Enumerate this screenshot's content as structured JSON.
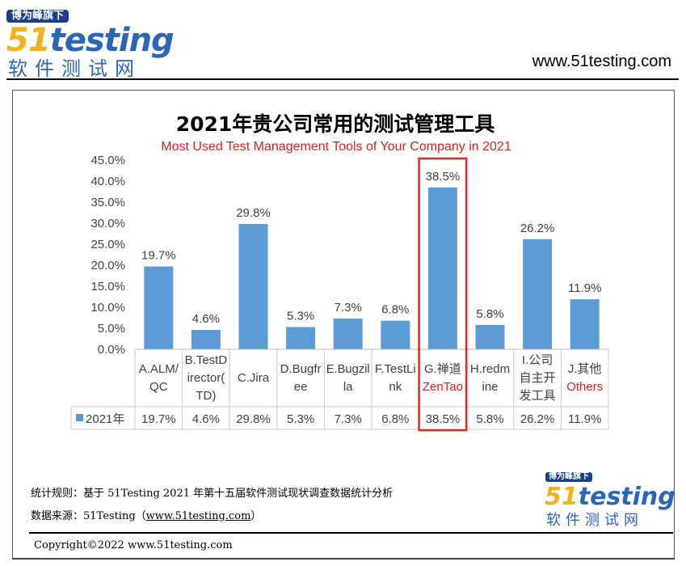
{
  "header": {
    "logo_badge": "博为峰旗下",
    "logo_text": "51testing",
    "logo_num": "51",
    "logo_word": "testing",
    "logo_sub": "软件测试网",
    "site": "www.51testing.com"
  },
  "chart_data": {
    "type": "bar",
    "title": "2021年贵公司常用的测试管理工具",
    "subtitle": "Most Used Test Management Tools of Your Company in 2021",
    "categories": [
      [
        "A.ALM/",
        "QC"
      ],
      [
        "B.TestD",
        "irector(",
        "TD)"
      ],
      [
        "C.Jira"
      ],
      [
        "D.Bugfr",
        "ee"
      ],
      [
        "E.Bugzil",
        "la"
      ],
      [
        "F.TestLi",
        "nk"
      ],
      [
        "G.禅道",
        "ZenTao"
      ],
      [
        "H.redm",
        "ine"
      ],
      [
        "I.公司",
        "自主开",
        "发工具"
      ],
      [
        "J.其他",
        "Others"
      ]
    ],
    "series": [
      {
        "name": "2021年",
        "values": [
          19.7,
          4.6,
          29.8,
          5.3,
          7.3,
          6.8,
          38.5,
          5.8,
          26.2,
          11.9
        ],
        "color": "#5b9bd5"
      }
    ],
    "data_labels": [
      "19.7%",
      "4.6%",
      "29.8%",
      "5.3%",
      "7.3%",
      "6.8%",
      "38.5%",
      "5.8%",
      "26.2%",
      "11.9%"
    ],
    "yticks": [
      "0.0%",
      "5.0%",
      "10.0%",
      "15.0%",
      "20.0%",
      "25.0%",
      "30.0%",
      "35.0%",
      "40.0%",
      "45.0%"
    ],
    "ylim": [
      0,
      45
    ],
    "highlight_index": 6,
    "highlight_color": "#ee2222",
    "legend_placement": "data-table"
  },
  "footer": {
    "rule": "统计规则：基于 51Testing 2021 年第十五届软件测试现状调查数据统计分析",
    "source_prefix": "数据来源：51Testing（",
    "source_link": "www.51testing.com",
    "source_suffix": "）",
    "copyright": "Copyright©2022 www.51testing.com",
    "logo_badge": "博为峰旗下",
    "logo_num": "51",
    "logo_word": "testing",
    "logo_sub": "软件测试网"
  }
}
